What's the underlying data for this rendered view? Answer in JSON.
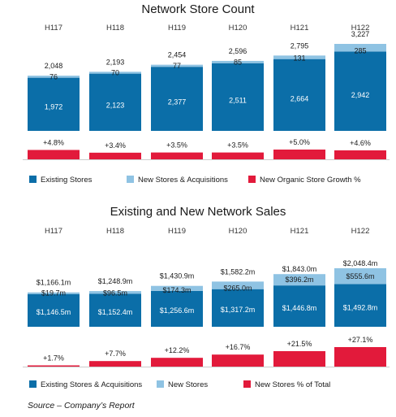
{
  "source": "Source – Company’s Report",
  "colors": {
    "existing": "#0b6ea8",
    "new": "#8fc3e3",
    "growth": "#e21a3b",
    "line": "#cccccc"
  },
  "chart_data": [
    {
      "type": "bar",
      "title": "Network Store Count",
      "categories": [
        "H117",
        "H118",
        "H119",
        "H120",
        "H121",
        "H122"
      ],
      "series": [
        {
          "name": "Existing Stores",
          "values": [
            1972,
            2123,
            2377,
            2511,
            2664,
            2942
          ],
          "labels": [
            "1,972",
            "2,123",
            "2,377",
            "2,511",
            "2,664",
            "2,942"
          ]
        },
        {
          "name": "New Stores & Acquisitions",
          "values": [
            76,
            70,
            77,
            85,
            131,
            285
          ],
          "labels": [
            "76",
            "70",
            "77",
            "85",
            "131",
            "285"
          ]
        }
      ],
      "totals": [
        "2,048",
        "2,193",
        "2,454",
        "2,596",
        "2,795",
        "3,227"
      ],
      "total_values": [
        2048,
        2193,
        2454,
        2596,
        2795,
        3227
      ],
      "growth": {
        "name": "New Organic Store Growth %",
        "values": [
          4.8,
          3.4,
          3.5,
          3.5,
          5.0,
          4.6
        ],
        "labels": [
          "+4.8%",
          "+3.4%",
          "+3.5%",
          "+3.5%",
          "+5.0%",
          "+4.6%"
        ]
      },
      "legend_position": "bottom"
    },
    {
      "type": "bar",
      "title": "Existing and New Network Sales",
      "categories": [
        "H117",
        "H118",
        "H119",
        "H120",
        "H121",
        "H122"
      ],
      "series": [
        {
          "name": "Existing Stores & Acquisitions",
          "values": [
            1146.5,
            1152.4,
            1256.6,
            1317.2,
            1446.8,
            1492.8
          ],
          "labels": [
            "$1,146.5m",
            "$1,152.4m",
            "$1,256.6m",
            "$1,317.2m",
            "$1,446.8m",
            "$1,492.8m"
          ]
        },
        {
          "name": "New Stores",
          "values": [
            19.7,
            96.5,
            174.3,
            265.0,
            396.2,
            555.6
          ],
          "labels": [
            "$19.7m",
            "$96.5m",
            "$174.3m",
            "$265.0m",
            "$396.2m",
            "$555.6m"
          ]
        }
      ],
      "totals": [
        "$1,166.1m",
        "$1,248.9m",
        "$1,430.9m",
        "$1,582.2m",
        "$1,843.0m",
        "$2,048.4m"
      ],
      "total_values": [
        1166.1,
        1248.9,
        1430.9,
        1582.2,
        1843.0,
        2048.4
      ],
      "growth": {
        "name": "New Stores % of Total",
        "values": [
          1.7,
          7.7,
          12.2,
          16.7,
          21.5,
          27.1
        ],
        "labels": [
          "+1.7%",
          "+7.7%",
          "+12.2%",
          "+16.7%",
          "+21.5%",
          "+27.1%"
        ]
      },
      "legend_position": "bottom"
    }
  ]
}
